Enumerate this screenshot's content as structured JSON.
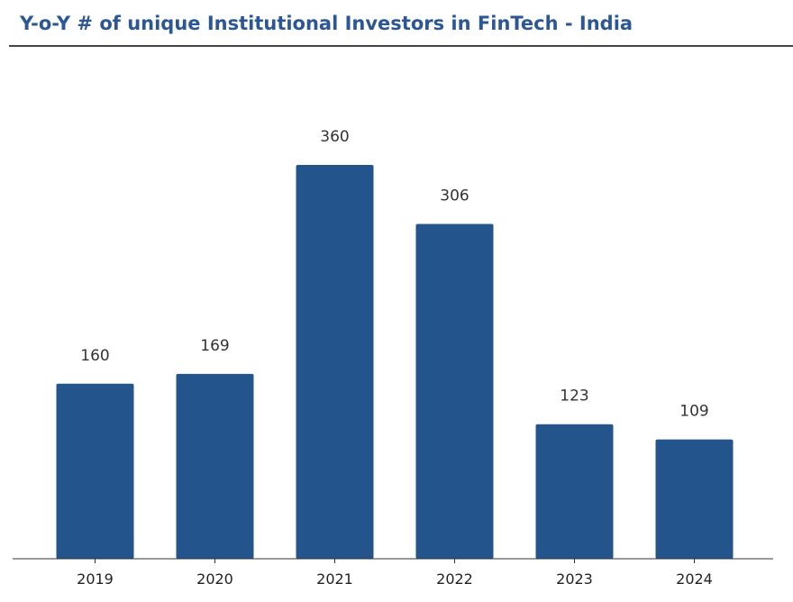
{
  "header": {
    "title": "Y-o-Y  # of unique Institutional Investors in FinTech - India"
  },
  "colors": {
    "title": "#2b5797",
    "bar": "#24548c"
  },
  "chart_data": {
    "type": "bar",
    "title": "Y-o-Y  # of unique Institutional Investors in FinTech - India",
    "categories": [
      "2019",
      "2020",
      "2021",
      "2022",
      "2023",
      "2024"
    ],
    "values": [
      160,
      169,
      360,
      306,
      123,
      109
    ],
    "data_labels": [
      "160",
      "169",
      "360",
      "306",
      "123",
      "109"
    ],
    "xlabel": "",
    "ylabel": "",
    "ylim": [
      0,
      360
    ],
    "grid": false,
    "legend": "none"
  }
}
